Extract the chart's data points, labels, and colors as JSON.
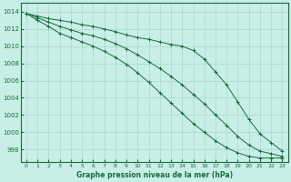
{
  "title": "Graphe pression niveau de la mer (hPa)",
  "bg_color": "#c8eee8",
  "grid_color": "#a8d8cc",
  "line_color": "#1a6b3a",
  "xlim": [
    -0.5,
    23.5
  ],
  "ylim": [
    996.5,
    1015.0
  ],
  "xticks": [
    0,
    1,
    2,
    3,
    4,
    5,
    6,
    7,
    8,
    9,
    10,
    11,
    12,
    13,
    14,
    15,
    16,
    17,
    18,
    19,
    20,
    21,
    22,
    23
  ],
  "yticks": [
    998,
    1000,
    1002,
    1004,
    1006,
    1008,
    1010,
    1012,
    1014
  ],
  "line_top": [
    1013.8,
    1013.5,
    1013.2,
    1013.0,
    1012.8,
    1012.5,
    1012.3,
    1012.0,
    1011.7,
    1011.3,
    1011.0,
    1010.8,
    1010.5,
    1010.2,
    1010.0,
    1009.5,
    1008.5,
    1007.0,
    1005.5,
    1003.5,
    1001.5,
    999.8,
    998.8,
    997.8
  ],
  "line_mid": [
    1013.8,
    1013.3,
    1012.8,
    1012.3,
    1011.9,
    1011.5,
    1011.2,
    1010.8,
    1010.3,
    1009.7,
    1009.0,
    1008.2,
    1007.4,
    1006.5,
    1005.5,
    1004.4,
    1003.3,
    1002.0,
    1000.8,
    999.5,
    998.5,
    997.8,
    997.5,
    997.2
  ],
  "line_bot": [
    1013.8,
    1013.0,
    1012.3,
    1011.5,
    1011.0,
    1010.5,
    1010.0,
    1009.4,
    1008.7,
    1007.9,
    1006.9,
    1005.8,
    1004.6,
    1003.4,
    1002.2,
    1001.0,
    1000.0,
    999.0,
    998.2,
    997.6,
    997.2,
    997.0,
    997.0,
    997.0
  ]
}
